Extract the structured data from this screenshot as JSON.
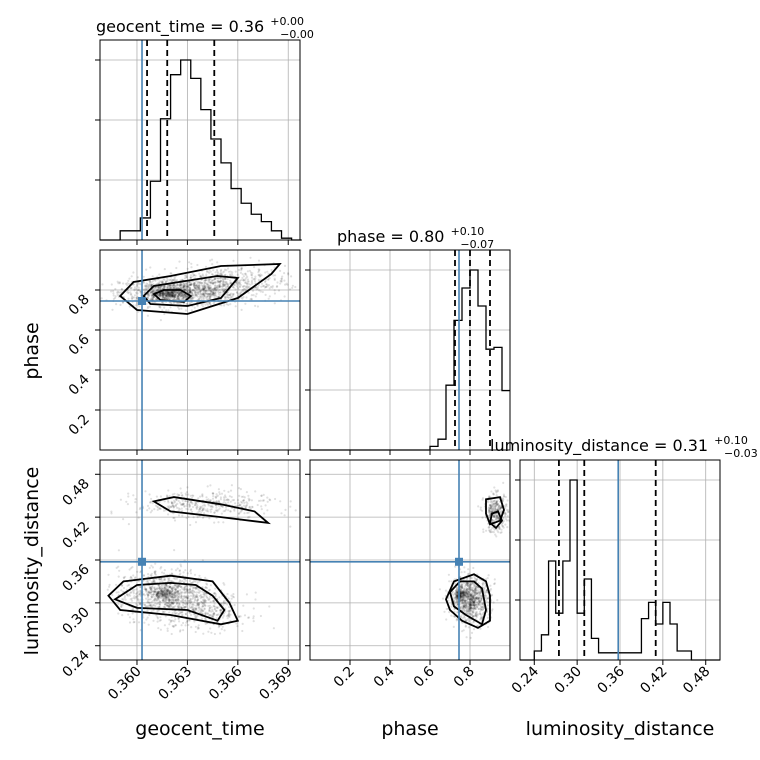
{
  "figure": {
    "truth_color": "#4682b4",
    "hist_color": "#000000",
    "parameters": [
      "geocent_time",
      "phase",
      "luminosity_distance"
    ]
  },
  "titles": [
    {
      "param": "geocent_time",
      "text": "geocent_time = 0.36",
      "sup": "+0.00",
      "sub": "−0.00"
    },
    {
      "param": "phase",
      "text": "phase = 0.80",
      "sup": "+0.10",
      "sub": "−0.07"
    },
    {
      "param": "luminosity_distance",
      "text": "luminosity_distance = 0.31",
      "sup": "+0.10",
      "sub": "−0.03"
    }
  ],
  "axis_labels": {
    "phase_y": "phase",
    "luminosity_distance_y": "luminosity_distance",
    "geocent_time_x": "geocent_time",
    "phase_x": "phase",
    "luminosity_distance_x": "luminosity_distance"
  },
  "chart_data": {
    "type": "corner",
    "grid": true,
    "parameters": {
      "geocent_time": {
        "range": [
          0.3578,
          0.3697
        ],
        "ticks": [
          0.36,
          0.363,
          0.366,
          0.369
        ],
        "tick_labels": [
          "0.360",
          "0.363",
          "0.366",
          "0.369"
        ],
        "truth": 0.3603,
        "quantiles": [
          0.3606,
          0.3618,
          0.3646
        ],
        "histogram": {
          "bin_width": 0.0006,
          "counts": [
            0,
            0,
            0.05,
            0.05,
            0.12,
            0.32,
            0.66,
            0.9,
            0.98,
            0.88,
            0.71,
            0.55,
            0.42,
            0.28,
            0.2,
            0.14,
            0.1,
            0.05,
            0.01,
            0
          ]
        }
      },
      "phase": {
        "range": [
          0.0,
          1.0
        ],
        "ticks": [
          0.2,
          0.4,
          0.6,
          0.8
        ],
        "tick_labels": [
          "0.2",
          "0.4",
          "0.6",
          "0.8"
        ],
        "truth": 0.745,
        "quantiles": [
          0.725,
          0.8,
          0.9
        ],
        "histogram": {
          "bin_width": 0.04,
          "counts": [
            0,
            0,
            0,
            0,
            0,
            0,
            0,
            0,
            0,
            0,
            0,
            0,
            0,
            0,
            0,
            0.02,
            0.06,
            0.36,
            0.72,
            0.9,
            1.0,
            0.8,
            0.56,
            0.57,
            0.33
          ]
        }
      },
      "luminosity_distance": {
        "range": [
          0.22,
          0.5
        ],
        "ticks": [
          0.24,
          0.3,
          0.36,
          0.42,
          0.48
        ],
        "tick_labels": [
          "0.24",
          "0.30",
          "0.36",
          "0.42",
          "0.48"
        ],
        "truth": 0.3575,
        "quantiles": [
          0.2745,
          0.31,
          0.41
        ],
        "histogram": {
          "bin_width": 0.01,
          "counts": [
            0,
            0,
            0.05,
            0.14,
            0.55,
            0.26,
            0.55,
            1.0,
            0.26,
            0.45,
            0.12,
            0.04,
            0.04,
            0.04,
            0.04,
            0.04,
            0.04,
            0.23,
            0.32,
            0.2,
            0.32,
            0.2,
            0.05,
            0.05,
            0,
            0,
            0,
            0
          ]
        }
      }
    },
    "pairs": [
      {
        "x": "geocent_time",
        "y": "phase",
        "truth": [
          0.3603,
          0.745
        ],
        "density_blobs": [
          {
            "x": 0.3624,
            "y": 0.79,
            "sx": 0.0017,
            "sy": 0.035,
            "n": 1100
          },
          {
            "x": 0.3652,
            "y": 0.83,
            "sx": 0.0018,
            "sy": 0.045,
            "n": 550
          },
          {
            "x": 0.3618,
            "y": 0.78,
            "sx": 0.0005,
            "sy": 0.015,
            "n": 250
          }
        ],
        "contours": [
          [
            [
              0.3604,
              0.77
            ],
            [
              0.3608,
              0.73
            ],
            [
              0.363,
              0.72
            ],
            [
              0.365,
              0.76
            ],
            [
              0.366,
              0.86
            ],
            [
              0.3648,
              0.87
            ],
            [
              0.3625,
              0.84
            ],
            [
              0.361,
              0.82
            ]
          ],
          [
            [
              0.359,
              0.77
            ],
            [
              0.36,
              0.7
            ],
            [
              0.363,
              0.68
            ],
            [
              0.366,
              0.76
            ],
            [
              0.368,
              0.88
            ],
            [
              0.3685,
              0.93
            ],
            [
              0.365,
              0.92
            ],
            [
              0.362,
              0.87
            ],
            [
              0.3598,
              0.84
            ]
          ],
          [
            [
              0.361,
              0.78
            ],
            [
              0.3614,
              0.75
            ],
            [
              0.3628,
              0.74
            ],
            [
              0.3632,
              0.77
            ],
            [
              0.3626,
              0.8
            ],
            [
              0.3616,
              0.8
            ]
          ]
        ]
      },
      {
        "x": "geocent_time",
        "y": "luminosity_distance",
        "truth": [
          0.3603,
          0.3575
        ],
        "density_blobs": [
          {
            "x": 0.3617,
            "y": 0.313,
            "sx": 0.0014,
            "sy": 0.017,
            "n": 900
          },
          {
            "x": 0.364,
            "y": 0.287,
            "sx": 0.0013,
            "sy": 0.013,
            "n": 350
          },
          {
            "x": 0.364,
            "y": 0.437,
            "sx": 0.002,
            "sy": 0.01,
            "n": 420
          },
          {
            "x": 0.3617,
            "y": 0.313,
            "sx": 0.0004,
            "sy": 0.004,
            "n": 180
          }
        ],
        "contours": [
          [
            [
              0.3587,
              0.305
            ],
            [
              0.36,
              0.293
            ],
            [
              0.363,
              0.29
            ],
            [
              0.3648,
              0.275
            ],
            [
              0.3652,
              0.29
            ],
            [
              0.3645,
              0.31
            ],
            [
              0.3635,
              0.325
            ],
            [
              0.362,
              0.328
            ],
            [
              0.36,
              0.325
            ]
          ],
          [
            [
              0.3583,
              0.31
            ],
            [
              0.359,
              0.29
            ],
            [
              0.362,
              0.283
            ],
            [
              0.365,
              0.27
            ],
            [
              0.366,
              0.275
            ],
            [
              0.3655,
              0.3
            ],
            [
              0.3645,
              0.33
            ],
            [
              0.362,
              0.338
            ],
            [
              0.3592,
              0.33
            ]
          ],
          [
            [
              0.361,
              0.442
            ],
            [
              0.362,
              0.428
            ],
            [
              0.365,
              0.42
            ],
            [
              0.3678,
              0.412
            ],
            [
              0.367,
              0.428
            ],
            [
              0.365,
              0.438
            ],
            [
              0.3622,
              0.448
            ]
          ]
        ]
      },
      {
        "x": "phase",
        "y": "luminosity_distance",
        "truth": [
          0.745,
          0.3575
        ],
        "density_blobs": [
          {
            "x": 0.8,
            "y": 0.305,
            "sx": 0.05,
            "sy": 0.016,
            "n": 900
          },
          {
            "x": 0.93,
            "y": 0.425,
            "sx": 0.03,
            "sy": 0.013,
            "n": 350
          },
          {
            "x": 0.75,
            "y": 0.312,
            "sx": 0.012,
            "sy": 0.004,
            "n": 150
          }
        ],
        "contours": [
          [
            [
              0.7,
              0.315
            ],
            [
              0.72,
              0.295
            ],
            [
              0.78,
              0.283
            ],
            [
              0.86,
              0.27
            ],
            [
              0.88,
              0.29
            ],
            [
              0.86,
              0.32
            ],
            [
              0.82,
              0.33
            ],
            [
              0.75,
              0.33
            ]
          ],
          [
            [
              0.68,
              0.305
            ],
            [
              0.7,
              0.29
            ],
            [
              0.76,
              0.275
            ],
            [
              0.84,
              0.265
            ],
            [
              0.9,
              0.275
            ],
            [
              0.9,
              0.31
            ],
            [
              0.88,
              0.33
            ],
            [
              0.82,
              0.34
            ],
            [
              0.72,
              0.33
            ]
          ],
          [
            [
              0.88,
              0.445
            ],
            [
              0.95,
              0.448
            ],
            [
              0.97,
              0.43
            ],
            [
              0.95,
              0.415
            ],
            [
              0.9,
              0.41
            ],
            [
              0.88,
              0.425
            ]
          ],
          [
            [
              0.91,
              0.425
            ],
            [
              0.94,
              0.428
            ],
            [
              0.96,
              0.415
            ],
            [
              0.93,
              0.405
            ],
            [
              0.9,
              0.412
            ]
          ]
        ]
      }
    ]
  }
}
